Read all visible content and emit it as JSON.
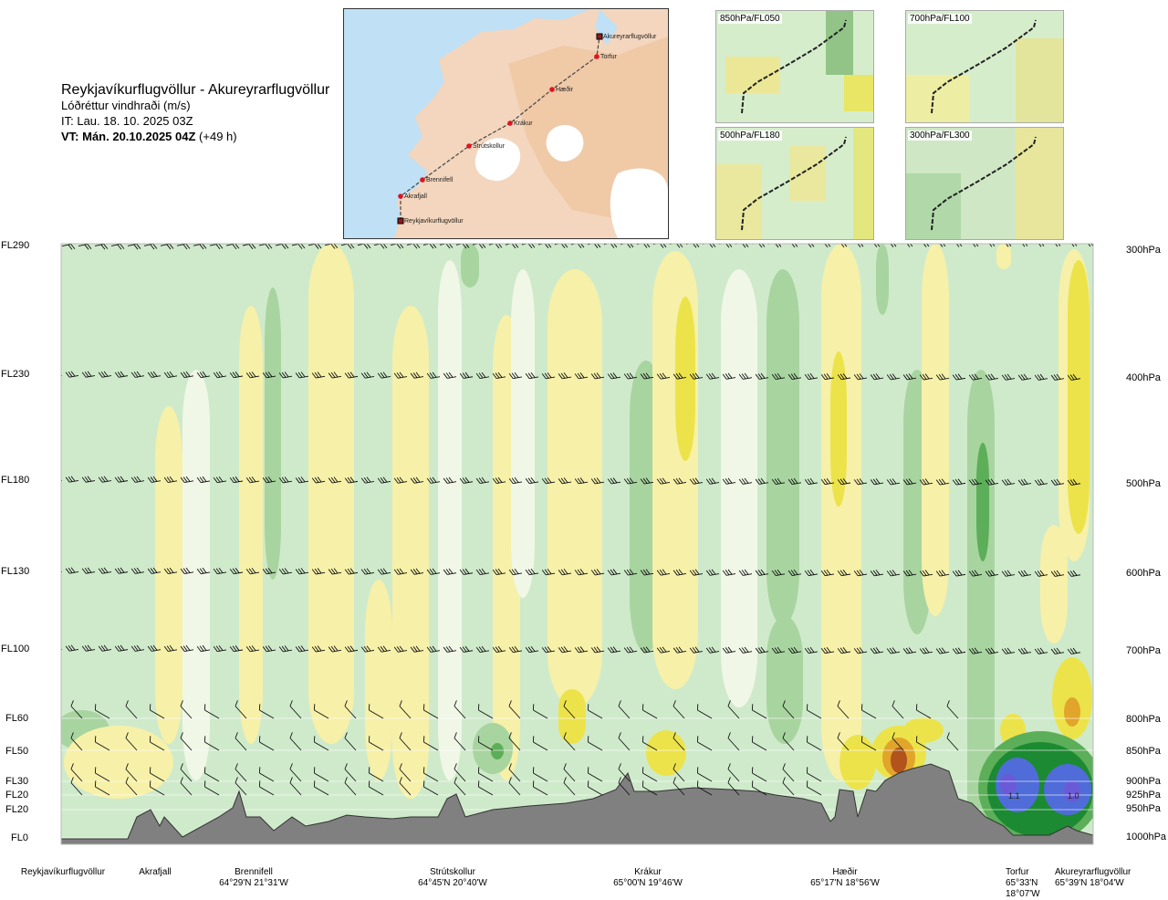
{
  "header": {
    "title": "Reykjavíkurflugvöllur - Akureyrarflugvöllur",
    "subtitle": "Lóðréttur vindhraði (m/s)",
    "issue_time": "IT: Lau. 18. 10. 2025 03Z",
    "valid_time_bold": "VT: Mán. 20.10.2025 04Z",
    "valid_time_offset": "(+49 h)"
  },
  "route_map": {
    "waypoints": [
      {
        "name": "Akureyrarflugvöllur"
      },
      {
        "name": "Torfur"
      },
      {
        "name": "Hæðir"
      },
      {
        "name": "Krákur"
      },
      {
        "name": "Strútskollur"
      },
      {
        "name": "Brennifell"
      },
      {
        "name": "Akrafjall"
      },
      {
        "name": "Reykjavíkurflugvöllur"
      }
    ],
    "colors": {
      "sea": "#bfe0f5",
      "land": "#f3d6bd",
      "glacier": "#ffffff",
      "route": "#444444",
      "point": "#e0141e"
    }
  },
  "mini_maps": [
    {
      "label": "850hPa/FL050"
    },
    {
      "label": "700hPa/FL100"
    },
    {
      "label": "500hPa/FL180"
    },
    {
      "label": "300hPa/FL300"
    }
  ],
  "left_axis": [
    "FL290",
    "FL230",
    "FL180",
    "FL130",
    "FL100",
    "FL60",
    "FL50",
    "FL30",
    "FL20",
    "FL20",
    "FL0"
  ],
  "right_axis": [
    "300hPa",
    "400hPa",
    "500hPa",
    "600hPa",
    "700hPa",
    "800hPa",
    "850hPa",
    "900hPa",
    "925hPa",
    "950hPa",
    "1000hPa"
  ],
  "stations": [
    {
      "name": "Reykjavíkurflugvöllur",
      "coord": ""
    },
    {
      "name": "Akrafjall",
      "coord": ""
    },
    {
      "name": "Brennifell",
      "coord": "64°29'N 21°31'W"
    },
    {
      "name": "Strútskollur",
      "coord": "64°45'N 20°40'W"
    },
    {
      "name": "Krákur",
      "coord": "65°00'N 19°46'W"
    },
    {
      "name": "Hæðir",
      "coord": "65°17'N 18°56'W"
    },
    {
      "name": "Torfur",
      "coord": "65°33'N 18°07'W"
    },
    {
      "name": "Akureyrarflugvöllur",
      "coord": "65°39'N 18°04'W"
    }
  ],
  "chart_data": {
    "type": "heatmap",
    "title": "Reykjavíkurflugvöllur - Akureyrarflugvöllur",
    "variable": "Lóðréttur vindhraði (m/s)",
    "y_levels_hpa": [
      300,
      400,
      500,
      600,
      700,
      800,
      850,
      900,
      925,
      950,
      1000
    ],
    "y_levels_fl": [
      "FL290",
      "FL230",
      "FL180",
      "FL130",
      "FL100",
      "FL60",
      "FL50",
      "FL30",
      "FL20",
      "FL20",
      "FL0"
    ],
    "x_stations": [
      "Reykjavíkurflugvöllur",
      "Akrafjall",
      "Brennifell",
      "Strútskollur",
      "Krákur",
      "Hæðir",
      "Torfur",
      "Akureyrarflugvöllur"
    ],
    "annotations": [
      {
        "station": "Torfur",
        "level_hpa": 925,
        "value": "1.1"
      },
      {
        "station": "Akureyrarflugvöllur",
        "level_hpa": 925,
        "value": "1.0"
      }
    ],
    "colors": {
      "strong_down": "#6a5ad8",
      "down3": "#1c8a32",
      "down2": "#5cae58",
      "down1": "#a8d4a0",
      "neutral_down": "#cfeacb",
      "neutral_up": "#f1f7e6",
      "up1": "#f7f0a8",
      "up2": "#ece34a",
      "up3": "#e1a52b",
      "up4": "#b1531b",
      "terrain": "#808080"
    },
    "grid": false
  }
}
